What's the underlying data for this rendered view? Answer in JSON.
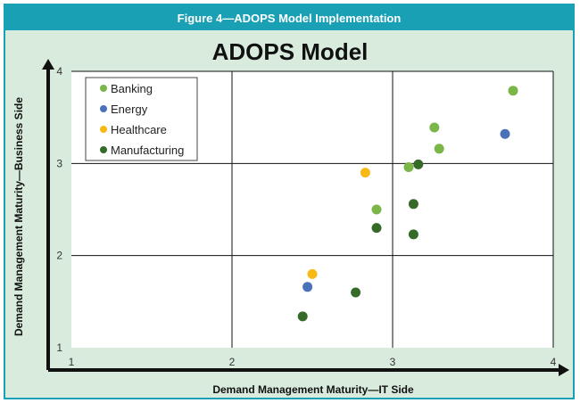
{
  "figure": {
    "banner": "Figure 4—ADOPS Model Implementation"
  },
  "chart_data": {
    "type": "scatter",
    "title": "ADOPS Model",
    "xlabel": "Demand Management Maturity—IT Side",
    "ylabel": "Demand Management Maturity—Business Side",
    "xlim": [
      1,
      4
    ],
    "ylim": [
      1,
      4
    ],
    "xticks": [
      "1",
      "2",
      "3",
      "4"
    ],
    "yticks": [
      "1",
      "2",
      "3",
      "4"
    ],
    "grid": true,
    "legend_position": "top-left",
    "series": [
      {
        "name": "Banking",
        "color": "#7ab648",
        "points": [
          [
            2.9,
            2.5
          ],
          [
            3.1,
            2.96
          ],
          [
            3.26,
            3.39
          ],
          [
            3.29,
            3.16
          ],
          [
            3.75,
            3.79
          ]
        ]
      },
      {
        "name": "Energy",
        "color": "#4a72b8",
        "points": [
          [
            2.47,
            1.66
          ],
          [
            3.7,
            3.32
          ]
        ]
      },
      {
        "name": "Healthcare",
        "color": "#f7b916",
        "points": [
          [
            2.5,
            1.8
          ],
          [
            2.83,
            2.9
          ]
        ]
      },
      {
        "name": "Manufacturing",
        "color": "#356a28",
        "points": [
          [
            2.44,
            1.34
          ],
          [
            2.77,
            1.6
          ],
          [
            2.9,
            2.3
          ],
          [
            3.13,
            2.23
          ],
          [
            3.13,
            2.56
          ],
          [
            3.16,
            2.99
          ]
        ]
      }
    ]
  }
}
